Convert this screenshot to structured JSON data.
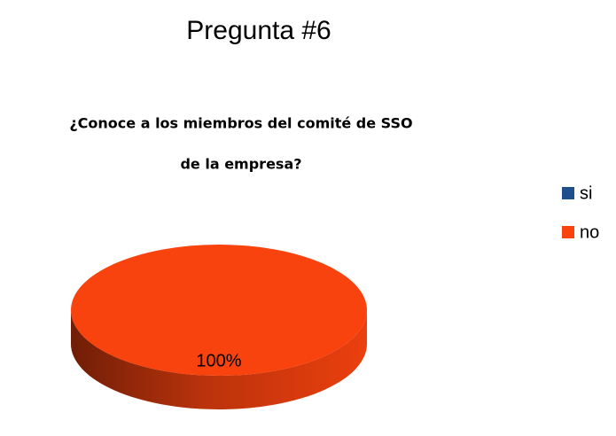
{
  "chart_data": {
    "type": "pie",
    "title": "Pregunta #6",
    "subtitle": [
      "¿Conoce a los miembros del comité de SSO",
      "de la empresa?"
    ],
    "categories": [
      "si",
      "no"
    ],
    "values": [
      0,
      100
    ],
    "value_labels": [
      null,
      "100%"
    ],
    "colors": [
      "#1f4e8c",
      "#f8430f"
    ],
    "legend": "right"
  }
}
